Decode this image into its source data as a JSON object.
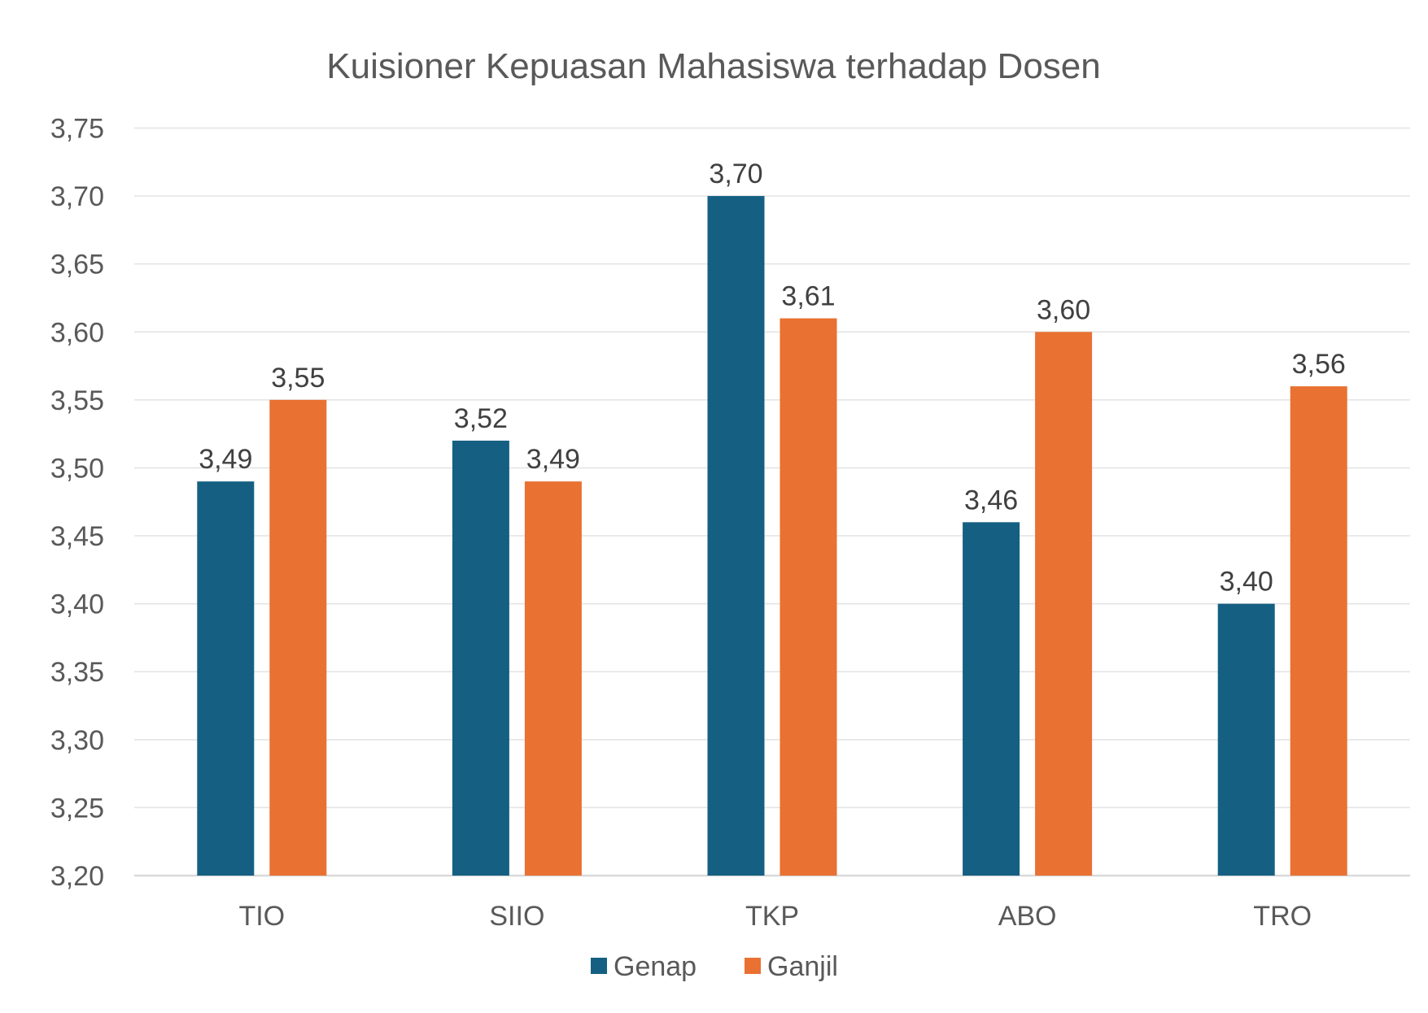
{
  "chart_data": {
    "type": "bar",
    "title": "Kuisioner Kepuasan Mahasiswa terhadap Dosen",
    "xlabel": "",
    "ylabel": "",
    "categories": [
      "TIO",
      "SIIO",
      "TKP",
      "ABO",
      "TRO"
    ],
    "series": [
      {
        "name": "Genap",
        "color": "#156082",
        "values": [
          3.49,
          3.52,
          3.7,
          3.46,
          3.4
        ],
        "labels": [
          "3,49",
          "3,52",
          "3,70",
          "3,46",
          "3,40"
        ]
      },
      {
        "name": "Ganjil",
        "color": "#E97132",
        "values": [
          3.55,
          3.49,
          3.61,
          3.6,
          3.56
        ],
        "labels": [
          "3,55",
          "3,49",
          "3,61",
          "3,60",
          "3,56"
        ]
      }
    ],
    "ylim": [
      3.2,
      3.75
    ],
    "yticks": [
      3.2,
      3.25,
      3.3,
      3.35,
      3.4,
      3.45,
      3.5,
      3.55,
      3.6,
      3.65,
      3.7,
      3.75
    ],
    "ytick_labels": [
      "3,20",
      "3,25",
      "3,30",
      "3,35",
      "3,40",
      "3,45",
      "3,50",
      "3,55",
      "3,60",
      "3,65",
      "3,70",
      "3,75"
    ],
    "grid": true,
    "legend": "bottom"
  }
}
